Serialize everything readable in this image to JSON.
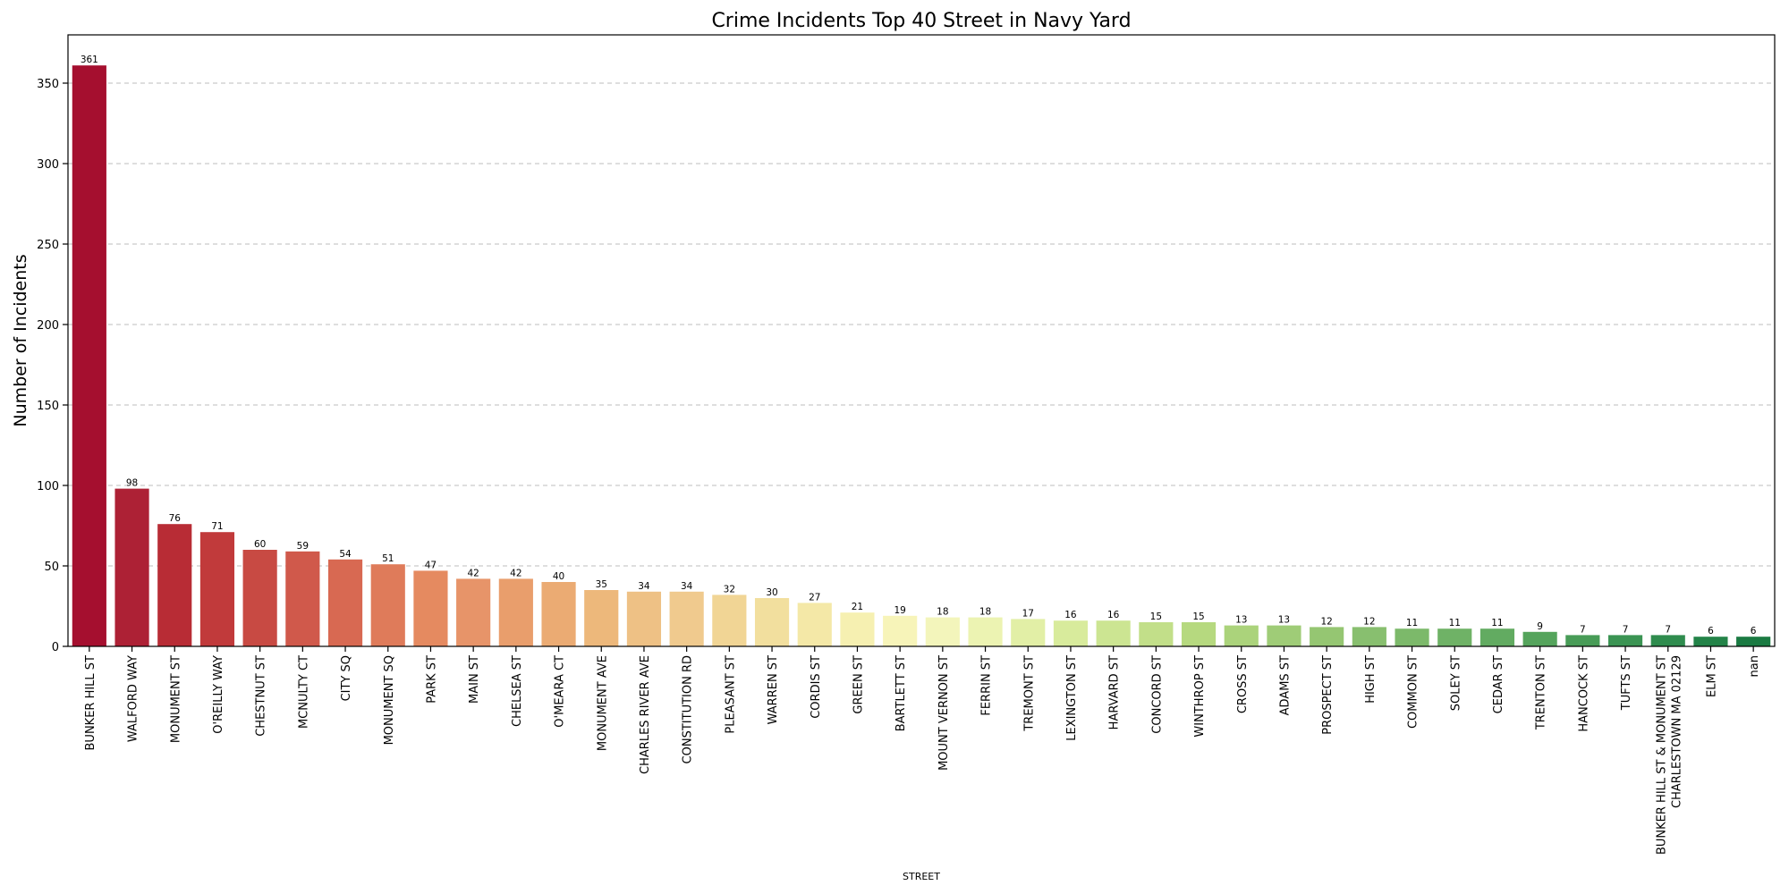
{
  "chart_data": {
    "type": "bar",
    "title": "Crime Incidents Top 40 Street in Navy Yard",
    "xlabel": "STREET",
    "ylabel": "Number of Incidents",
    "ylim": [
      0,
      380
    ],
    "yticks": [
      0,
      50,
      100,
      150,
      200,
      250,
      300,
      350
    ],
    "grid": "y-dashed",
    "palette": "RdYlGn",
    "categories": [
      "BUNKER HILL ST",
      "WALFORD WAY",
      "MONUMENT ST",
      "O'REILLY WAY",
      "CHESTNUT ST",
      "MCNULTY CT",
      "CITY SQ",
      "MONUMENT SQ",
      "PARK ST",
      "MAIN ST",
      "CHELSEA ST",
      "O'MEARA CT",
      "MONUMENT AVE",
      "CHARLES RIVER AVE",
      "CONSTITUTION RD",
      "PLEASANT ST",
      "WARREN ST",
      "CORDIS ST",
      "GREEN ST",
      "BARTLETT ST",
      "MOUNT VERNON ST",
      "FERRIN ST",
      "TREMONT ST",
      "LEXINGTON ST",
      "HARVARD ST",
      "CONCORD ST",
      "WINTHROP ST",
      "CROSS ST",
      "ADAMS ST",
      "PROSPECT ST",
      "HIGH ST",
      "COMMON ST",
      "SOLEY ST",
      "CEDAR ST",
      "TRENTON ST",
      "HANCOCK ST",
      "TUFTS ST",
      "BUNKER HILL ST & MONUMENT ST\nCHARLESTOWN  MA 02129",
      "ELM ST",
      "nan"
    ],
    "values": [
      361,
      98,
      76,
      71,
      60,
      59,
      54,
      51,
      47,
      42,
      42,
      40,
      35,
      34,
      34,
      32,
      30,
      27,
      21,
      19,
      18,
      18,
      17,
      16,
      16,
      15,
      15,
      13,
      13,
      12,
      12,
      11,
      11,
      11,
      9,
      7,
      7,
      7,
      6,
      6
    ],
    "colors": [
      "#a50f2f",
      "#ad2135",
      "#b82c35",
      "#c13a3b",
      "#c84a43",
      "#d0594b",
      "#d86952",
      "#df7b5a",
      "#e58a60",
      "#e79469",
      "#e99e6c",
      "#ebab73",
      "#edb87b",
      "#eec185",
      "#f0ca8e",
      "#f1d595",
      "#f2df9e",
      "#f4e8a7",
      "#f6f0b1",
      "#f7f4b9",
      "#f3f5bb",
      "#ecf3b2",
      "#e2efa6",
      "#d8eb9c",
      "#cce592",
      "#c2df89",
      "#b6d97f",
      "#abd37b",
      "#9fcc77",
      "#95c672",
      "#88bf6f",
      "#7cb96a",
      "#6fb266",
      "#62ab61",
      "#55a45c",
      "#489c57",
      "#3b9453",
      "#2f8c4e",
      "#238348",
      "#1a7a42"
    ]
  }
}
